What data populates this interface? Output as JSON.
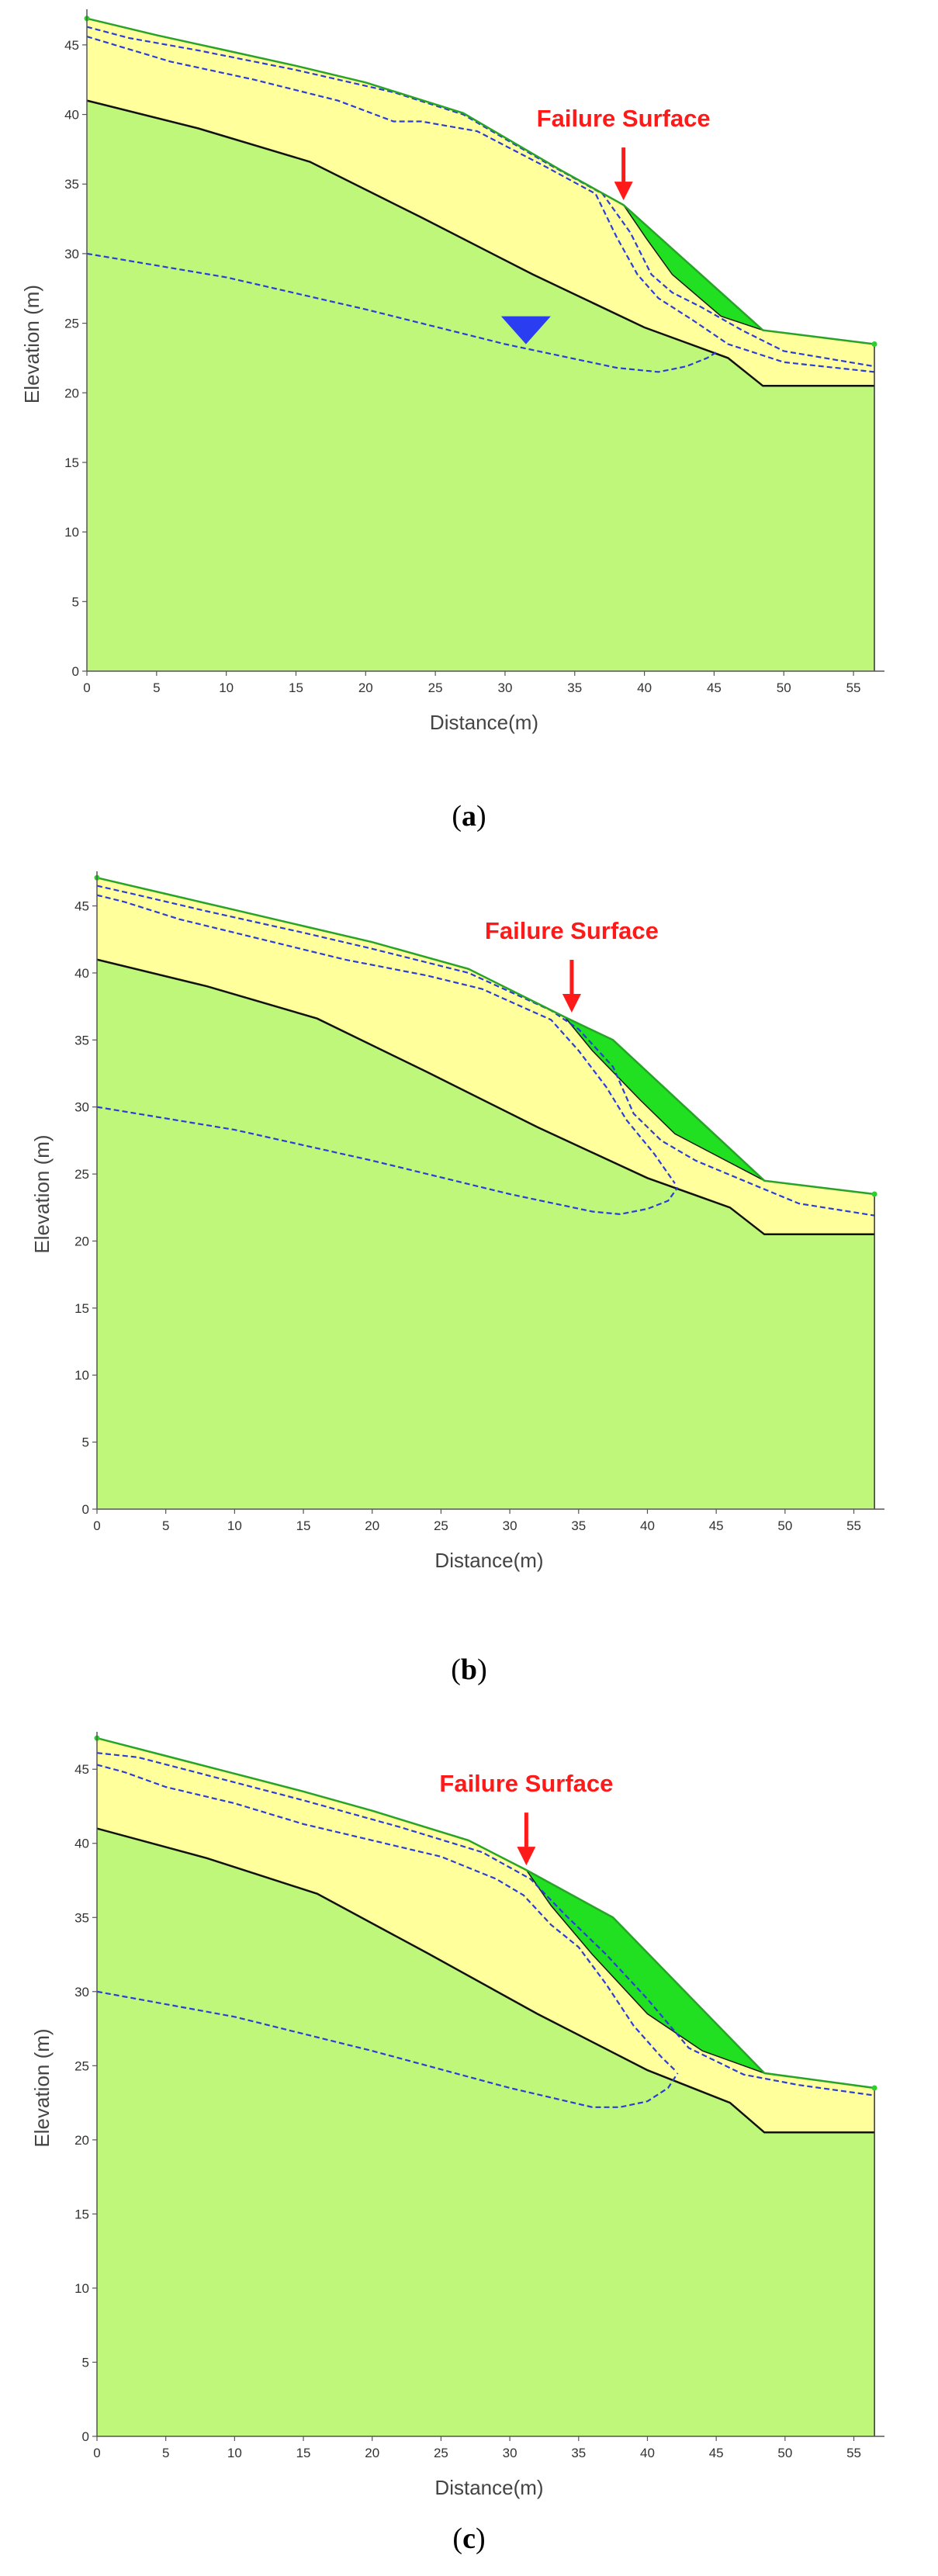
{
  "colors": {
    "lower_layer": "#bff77b",
    "upper_layer": "#ffff9c",
    "failure_mass": "#21e021",
    "ground_surface_line": "#27a327",
    "boundary_line": "#111111",
    "water_line": "#2b3dd8",
    "water_marker": "#2b3df0",
    "failure_text": "#ff1a1a",
    "arrow": "#ff1a1a"
  },
  "chart_data": [
    {
      "type": "area",
      "caption_letter": "a",
      "xlabel": "Distance(m)",
      "ylabel": "Elevation  (m)",
      "xlim": [
        0,
        57
      ],
      "ylim": [
        0,
        47
      ],
      "xticks": [
        0,
        5,
        10,
        15,
        20,
        25,
        30,
        35,
        40,
        45,
        50,
        55
      ],
      "yticks": [
        0,
        5,
        10,
        15,
        20,
        25,
        30,
        35,
        40,
        45
      ],
      "annotation": "Failure Surface",
      "arrow_x": 38.5,
      "ground_surface": [
        [
          0,
          46.9
        ],
        [
          5,
          45.7
        ],
        [
          10,
          44.6
        ],
        [
          15,
          43.5
        ],
        [
          20,
          42.3
        ],
        [
          27,
          40.1
        ],
        [
          34,
          36.0
        ],
        [
          38.5,
          33.5
        ],
        [
          48.5,
          24.5
        ],
        [
          56.5,
          23.5
        ]
      ],
      "layer_boundary": [
        [
          0,
          41.0
        ],
        [
          8,
          39.0
        ],
        [
          16,
          36.6
        ],
        [
          24,
          32.6
        ],
        [
          32,
          28.5
        ],
        [
          40,
          24.7
        ],
        [
          46,
          22.5
        ],
        [
          48.5,
          20.5
        ],
        [
          56.5,
          20.5
        ]
      ],
      "failure_mass": [
        [
          38.5,
          33.5
        ],
        [
          48.5,
          24.5
        ],
        [
          45.5,
          25.5
        ],
        [
          42,
          28.5
        ],
        [
          40.2,
          31.0
        ]
      ],
      "water_table": [
        [
          0,
          30.0
        ],
        [
          10,
          28.3
        ],
        [
          20,
          26.0
        ],
        [
          30,
          23.5
        ],
        [
          38,
          21.8
        ],
        [
          41,
          21.5
        ],
        [
          43,
          21.9
        ],
        [
          44.5,
          22.5
        ],
        [
          45.3,
          23.0
        ]
      ],
      "dashed_lines": [
        [
          [
            0,
            46.3
          ],
          [
            3,
            45.5
          ],
          [
            8,
            44.6
          ],
          [
            15,
            43.2
          ],
          [
            22,
            41.6
          ],
          [
            27,
            40.0
          ],
          [
            33,
            36.5
          ],
          [
            37,
            34.3
          ],
          [
            39,
            31.5
          ],
          [
            40.5,
            28.5
          ],
          [
            42,
            27.2
          ],
          [
            44,
            26.2
          ],
          [
            47,
            24.5
          ],
          [
            50,
            23.0
          ],
          [
            56.5,
            21.9
          ]
        ],
        [
          [
            0,
            45.6
          ],
          [
            2,
            45.0
          ],
          [
            6,
            43.8
          ],
          [
            12,
            42.5
          ],
          [
            18,
            41.0
          ],
          [
            22,
            39.5
          ],
          [
            24,
            39.5
          ],
          [
            28,
            38.8
          ],
          [
            33,
            36.2
          ],
          [
            36.5,
            34.3
          ],
          [
            38,
            31.2
          ],
          [
            39.5,
            28.5
          ],
          [
            41,
            26.8
          ],
          [
            43.5,
            25.2
          ],
          [
            46,
            23.5
          ],
          [
            50,
            22.2
          ],
          [
            56.5,
            21.5
          ]
        ]
      ],
      "water_marker": [
        31.5,
        24.5
      ]
    },
    {
      "type": "area",
      "caption_letter": "b",
      "xlabel": "Distance(m)",
      "ylabel": "Elevation  (m)",
      "xlim": [
        0,
        57
      ],
      "ylim": [
        0,
        47
      ],
      "xticks": [
        0,
        5,
        10,
        15,
        20,
        25,
        30,
        35,
        40,
        45,
        50,
        55
      ],
      "yticks": [
        0,
        5,
        10,
        15,
        20,
        25,
        30,
        35,
        40,
        45
      ],
      "annotation": "Failure Surface",
      "arrow_x": 34.5,
      "ground_surface": [
        [
          0,
          47.1
        ],
        [
          5,
          45.9
        ],
        [
          10,
          44.7
        ],
        [
          15,
          43.5
        ],
        [
          20,
          42.3
        ],
        [
          27,
          40.3
        ],
        [
          34,
          36.7
        ],
        [
          37.5,
          35.0
        ],
        [
          48.5,
          24.5
        ],
        [
          56.5,
          23.5
        ]
      ],
      "layer_boundary": [
        [
          0,
          41.0
        ],
        [
          8,
          39.0
        ],
        [
          16,
          36.6
        ],
        [
          24,
          32.6
        ],
        [
          32,
          28.5
        ],
        [
          40,
          24.7
        ],
        [
          46,
          22.5
        ],
        [
          48.5,
          20.5
        ],
        [
          56.5,
          20.5
        ]
      ],
      "failure_mass": [
        [
          34,
          36.7
        ],
        [
          37.5,
          35.0
        ],
        [
          48.5,
          24.5
        ],
        [
          42,
          28.0
        ],
        [
          39.5,
          30.5
        ],
        [
          36,
          34.2
        ]
      ],
      "water_table": [
        [
          0,
          30.0
        ],
        [
          10,
          28.3
        ],
        [
          20,
          26.0
        ],
        [
          30,
          23.5
        ],
        [
          36,
          22.2
        ],
        [
          38,
          22.0
        ],
        [
          40,
          22.4
        ],
        [
          41.5,
          23.0
        ],
        [
          42.2,
          24.0
        ]
      ],
      "dashed_lines": [
        [
          [
            0,
            46.5
          ],
          [
            3,
            45.8
          ],
          [
            8,
            44.6
          ],
          [
            15,
            43.0
          ],
          [
            20,
            41.8
          ],
          [
            27,
            40.0
          ],
          [
            33,
            37.2
          ],
          [
            35,
            35.8
          ],
          [
            37.5,
            33.0
          ],
          [
            39,
            29.5
          ],
          [
            41,
            27.5
          ],
          [
            43.5,
            26.0
          ],
          [
            47,
            24.5
          ],
          [
            51,
            22.8
          ],
          [
            56.5,
            21.9
          ]
        ],
        [
          [
            0,
            45.8
          ],
          [
            2,
            45.3
          ],
          [
            6,
            44.0
          ],
          [
            12,
            42.5
          ],
          [
            18,
            41.0
          ],
          [
            24,
            39.8
          ],
          [
            28,
            38.8
          ],
          [
            33,
            36.5
          ],
          [
            35,
            34.2
          ],
          [
            37,
            31.5
          ],
          [
            38.5,
            29.0
          ],
          [
            40.5,
            26.5
          ],
          [
            42,
            24.3
          ]
        ]
      ],
      "water_marker": null
    },
    {
      "type": "area",
      "caption_letter": "c",
      "xlabel": "Distance(m)",
      "ylabel": "Elevation  (m)",
      "xlim": [
        0,
        57
      ],
      "ylim": [
        0,
        47
      ],
      "xticks": [
        0,
        5,
        10,
        15,
        20,
        25,
        30,
        35,
        40,
        45,
        50,
        55
      ],
      "yticks": [
        0,
        5,
        10,
        15,
        20,
        25,
        30,
        35,
        40,
        45
      ],
      "annotation": "Failure Surface",
      "arrow_x": 31.2,
      "ground_surface": [
        [
          0,
          47.1
        ],
        [
          5,
          45.9
        ],
        [
          10,
          44.7
        ],
        [
          15,
          43.5
        ],
        [
          20,
          42.2
        ],
        [
          27,
          40.2
        ],
        [
          31.2,
          38.2
        ],
        [
          37.5,
          35.0
        ],
        [
          48.5,
          24.5
        ],
        [
          56.5,
          23.5
        ]
      ],
      "layer_boundary": [
        [
          0,
          41.0
        ],
        [
          8,
          39.0
        ],
        [
          16,
          36.6
        ],
        [
          24,
          32.6
        ],
        [
          32,
          28.5
        ],
        [
          40,
          24.7
        ],
        [
          46,
          22.5
        ],
        [
          48.5,
          20.5
        ],
        [
          56.5,
          20.5
        ]
      ],
      "failure_mass": [
        [
          31.2,
          38.2
        ],
        [
          37.5,
          35.0
        ],
        [
          48.5,
          24.5
        ],
        [
          44,
          26.0
        ],
        [
          40,
          28.5
        ],
        [
          36,
          32.5
        ],
        [
          33,
          35.8
        ]
      ],
      "water_table": [
        [
          0,
          30.0
        ],
        [
          10,
          28.3
        ],
        [
          20,
          26.0
        ],
        [
          30,
          23.5
        ],
        [
          36,
          22.2
        ],
        [
          38,
          22.2
        ],
        [
          40,
          22.6
        ],
        [
          41.5,
          23.5
        ],
        [
          42.2,
          24.5
        ]
      ],
      "dashed_lines": [
        [
          [
            0,
            46.1
          ],
          [
            3,
            45.8
          ],
          [
            8,
            44.6
          ],
          [
            15,
            42.9
          ],
          [
            22,
            41.1
          ],
          [
            28,
            39.4
          ],
          [
            31.5,
            37.6
          ],
          [
            34,
            35.2
          ],
          [
            37,
            32.5
          ],
          [
            40,
            29.5
          ],
          [
            43,
            26.2
          ],
          [
            47,
            24.4
          ],
          [
            51,
            23.7
          ],
          [
            56.5,
            23.0
          ]
        ],
        [
          [
            0,
            45.3
          ],
          [
            2,
            44.8
          ],
          [
            5,
            43.8
          ],
          [
            10,
            42.7
          ],
          [
            15,
            41.3
          ],
          [
            20,
            40.2
          ],
          [
            25,
            39.1
          ],
          [
            29,
            37.6
          ],
          [
            31,
            36.5
          ],
          [
            33,
            34.5
          ],
          [
            35,
            33.0
          ],
          [
            37,
            30.5
          ],
          [
            39,
            27.7
          ],
          [
            41,
            25.6
          ],
          [
            42,
            24.7
          ]
        ]
      ],
      "water_marker": null
    }
  ]
}
